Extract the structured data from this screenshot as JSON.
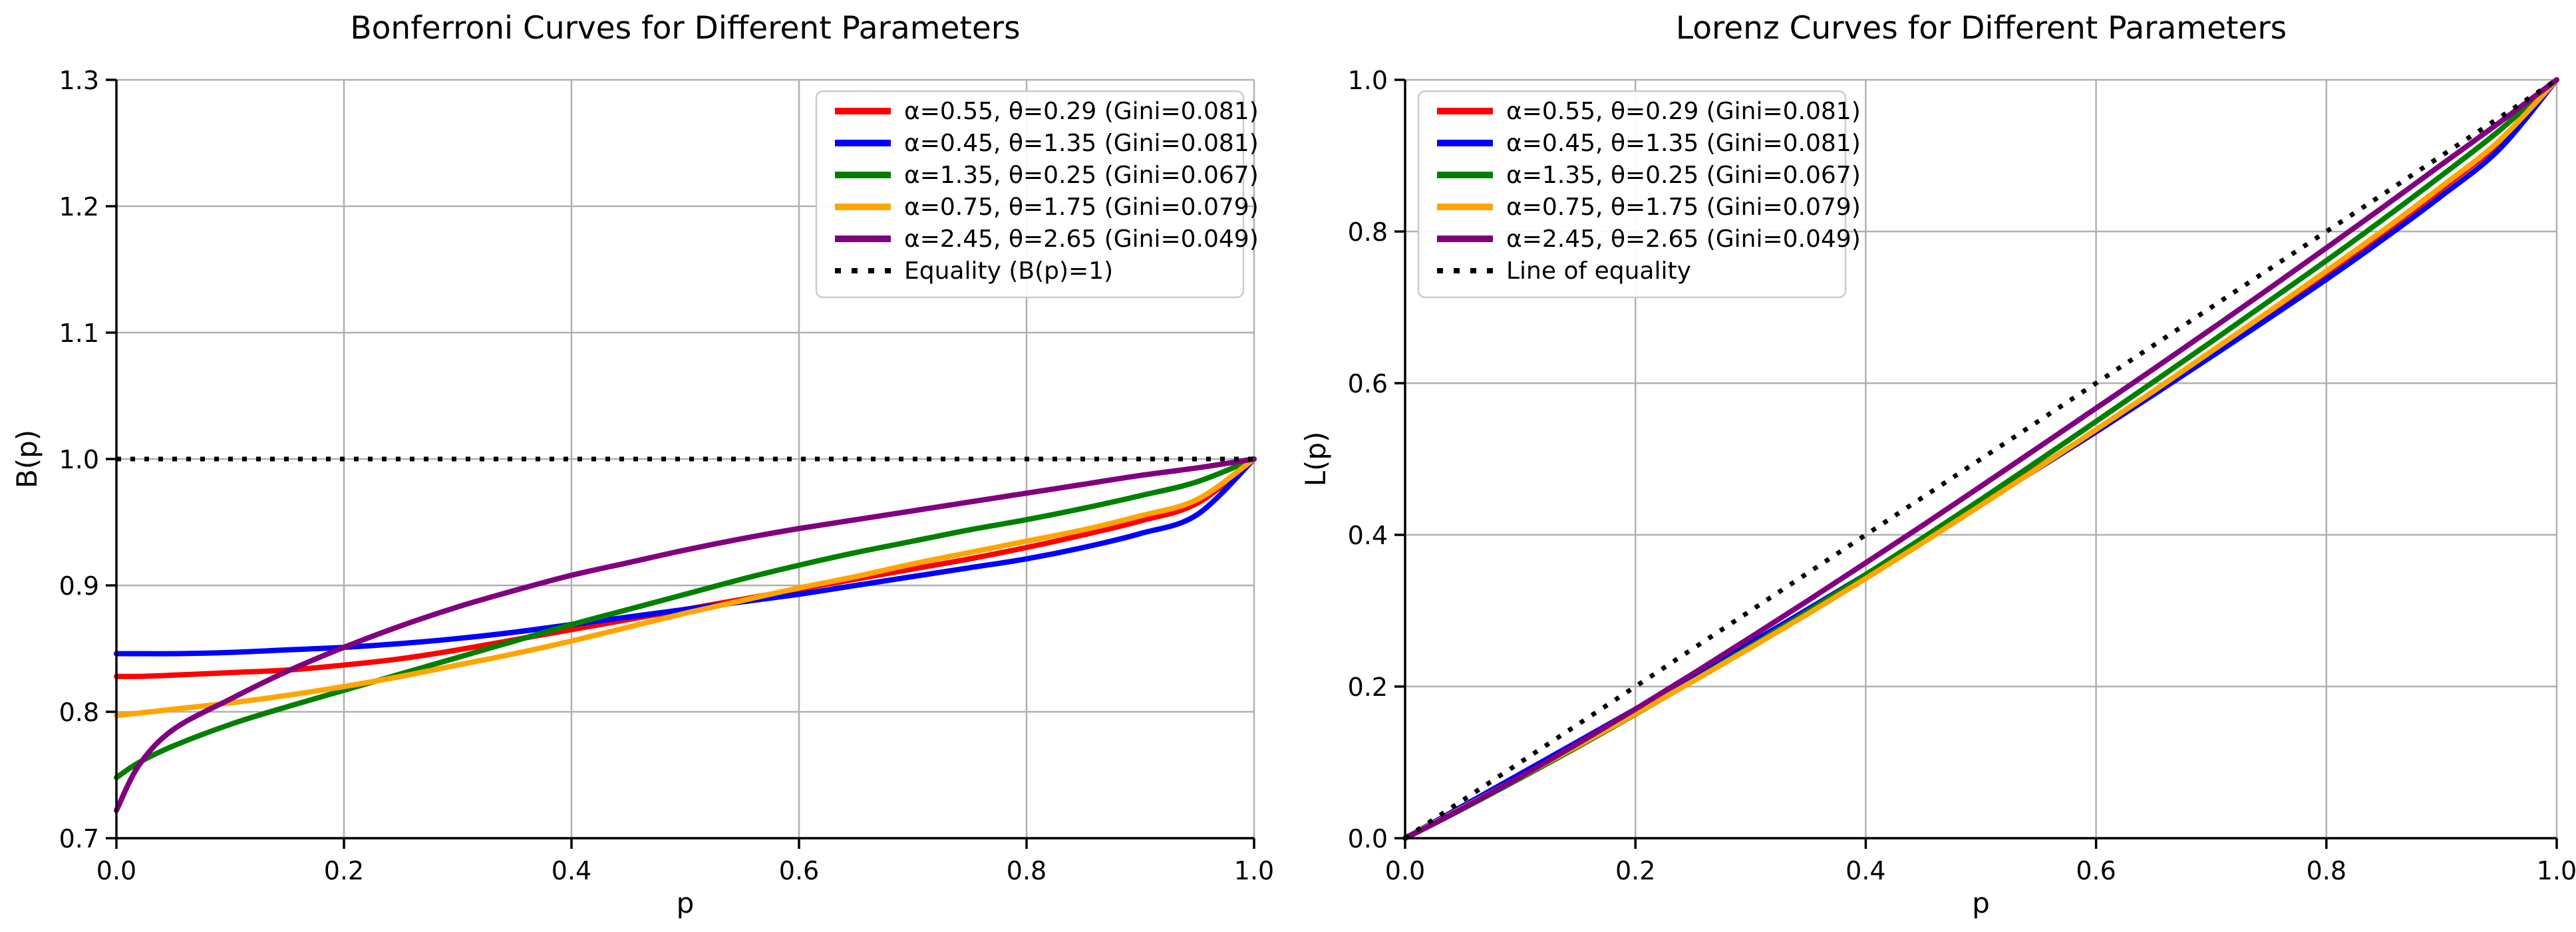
{
  "figure": {
    "background": "#ffffff"
  },
  "colors": {
    "grid": "#b0b0b0",
    "spine": "#000000",
    "legend_border": "#cccccc",
    "legend_fill": "#ffffff"
  },
  "chart_data": [
    {
      "type": "line",
      "title": "Bonferroni Curves for Different Parameters",
      "xlabel": "p",
      "ylabel": "B(p)",
      "xlim": [
        0.0,
        1.0
      ],
      "ylim": [
        0.7,
        1.3
      ],
      "xticks": [
        0.0,
        0.2,
        0.4,
        0.6,
        0.8,
        1.0
      ],
      "xtick_labels": [
        "0.0",
        "0.2",
        "0.4",
        "0.6",
        "0.8",
        "1.0"
      ],
      "yticks": [
        0.7,
        0.8,
        0.9,
        1.0,
        1.1,
        1.2,
        1.3
      ],
      "ytick_labels": [
        "0.7",
        "0.8",
        "0.9",
        "1.0",
        "1.1",
        "1.2",
        "1.3"
      ],
      "grid": true,
      "legend_position": "upper right",
      "x": [
        0,
        0.02,
        0.05,
        0.1,
        0.15,
        0.2,
        0.25,
        0.3,
        0.35,
        0.4,
        0.45,
        0.5,
        0.55,
        0.6,
        0.65,
        0.7,
        0.75,
        0.8,
        0.85,
        0.9,
        0.95,
        1
      ],
      "series": [
        {
          "name": "red",
          "label": "α=0.55, θ=0.29 (Gini=0.081)",
          "color": "#ff0000",
          "style": "solid",
          "y": [
            0.828,
            0.828,
            0.829,
            0.831,
            0.833,
            0.837,
            0.842,
            0.849,
            0.857,
            0.865,
            0.873,
            0.881,
            0.889,
            0.897,
            0.905,
            0.913,
            0.921,
            0.93,
            0.94,
            0.951,
            0.965,
            1
          ]
        },
        {
          "name": "blue",
          "label": "α=0.45, θ=1.35 (Gini=0.081)",
          "color": "#0000ff",
          "style": "solid",
          "y": [
            0.846,
            0.846,
            0.846,
            0.847,
            0.849,
            0.851,
            0.854,
            0.858,
            0.863,
            0.869,
            0.875,
            0.881,
            0.887,
            0.893,
            0.9,
            0.907,
            0.914,
            0.921,
            0.93,
            0.941,
            0.956,
            1
          ]
        },
        {
          "name": "green",
          "label": "α=1.35, θ=0.25 (Gini=0.067)",
          "color": "#008000",
          "style": "solid",
          "y": [
            0.748,
            0.76,
            0.773,
            0.79,
            0.804,
            0.817,
            0.83,
            0.843,
            0.856,
            0.869,
            0.881,
            0.893,
            0.905,
            0.916,
            0.926,
            0.935,
            0.944,
            0.952,
            0.961,
            0.971,
            0.982,
            1
          ]
        },
        {
          "name": "orange",
          "label": "α=0.75, θ=1.75 (Gini=0.079)",
          "color": "#ffa500",
          "style": "solid",
          "y": [
            0.797,
            0.799,
            0.802,
            0.807,
            0.813,
            0.82,
            0.828,
            0.837,
            0.846,
            0.856,
            0.867,
            0.878,
            0.888,
            0.898,
            0.907,
            0.917,
            0.926,
            0.935,
            0.944,
            0.955,
            0.968,
            1
          ]
        },
        {
          "name": "purple",
          "label": "α=2.45, θ=2.65 (Gini=0.049)",
          "color": "#800080",
          "style": "solid",
          "y": [
            0.722,
            0.758,
            0.786,
            0.81,
            0.832,
            0.851,
            0.868,
            0.883,
            0.896,
            0.908,
            0.918,
            0.928,
            0.937,
            0.945,
            0.952,
            0.959,
            0.966,
            0.973,
            0.98,
            0.987,
            0.993,
            1
          ]
        },
        {
          "name": "equality",
          "label": "Equality (B(p)=1)",
          "color": "#000000",
          "style": "dotted",
          "x": [
            0,
            1
          ],
          "y": [
            1,
            1
          ]
        }
      ]
    },
    {
      "type": "line",
      "title": "Lorenz Curves for Different Parameters",
      "xlabel": "p",
      "ylabel": "L(p)",
      "xlim": [
        0.0,
        1.0
      ],
      "ylim": [
        0.0,
        1.0
      ],
      "xticks": [
        0.0,
        0.2,
        0.4,
        0.6,
        0.8,
        1.0
      ],
      "xtick_labels": [
        "0.0",
        "0.2",
        "0.4",
        "0.6",
        "0.8",
        "1.0"
      ],
      "yticks": [
        0.0,
        0.2,
        0.4,
        0.6,
        0.8,
        1.0
      ],
      "ytick_labels": [
        "0.0",
        "0.2",
        "0.4",
        "0.6",
        "0.8",
        "1.0"
      ],
      "grid": true,
      "legend_position": "upper left",
      "x": [
        0,
        0.02,
        0.05,
        0.1,
        0.15,
        0.2,
        0.25,
        0.3,
        0.35,
        0.4,
        0.45,
        0.5,
        0.55,
        0.6,
        0.65,
        0.7,
        0.75,
        0.8,
        0.85,
        0.9,
        0.95,
        1
      ],
      "series": [
        {
          "name": "red",
          "label": "α=0.55, θ=0.29 (Gini=0.081)",
          "color": "#ff0000",
          "style": "solid",
          "y": [
            0,
            0.0166,
            0.0415,
            0.0831,
            0.125,
            0.1674,
            0.2105,
            0.2547,
            0.3,
            0.346,
            0.3929,
            0.4405,
            0.489,
            0.5382,
            0.5883,
            0.6391,
            0.6908,
            0.744,
            0.799,
            0.8559,
            0.9168,
            1
          ]
        },
        {
          "name": "blue",
          "label": "α=0.45, θ=1.35 (Gini=0.081)",
          "color": "#0000ff",
          "style": "solid",
          "y": [
            0,
            0.0169,
            0.0423,
            0.0847,
            0.1274,
            0.1702,
            0.2135,
            0.2574,
            0.3021,
            0.3476,
            0.3938,
            0.4405,
            0.4879,
            0.5358,
            0.585,
            0.6349,
            0.6855,
            0.7368,
            0.7905,
            0.8469,
            0.9082,
            1
          ]
        },
        {
          "name": "green",
          "label": "α=1.35, θ=0.25 (Gini=0.067)",
          "color": "#008000",
          "style": "solid",
          "y": [
            0,
            0.0152,
            0.0387,
            0.079,
            0.1206,
            0.1634,
            0.2075,
            0.2529,
            0.2996,
            0.3476,
            0.3965,
            0.4465,
            0.4978,
            0.5496,
            0.6019,
            0.6545,
            0.708,
            0.7616,
            0.8169,
            0.8739,
            0.9329,
            1
          ]
        },
        {
          "name": "orange",
          "label": "α=0.75, θ=1.75 (Gini=0.079)",
          "color": "#ffa500",
          "style": "solid",
          "y": [
            0,
            0.016,
            0.0401,
            0.0807,
            0.122,
            0.164,
            0.207,
            0.2511,
            0.2961,
            0.3424,
            0.3902,
            0.439,
            0.4884,
            0.5388,
            0.5896,
            0.6419,
            0.6945,
            0.748,
            0.8024,
            0.8595,
            0.9196,
            1
          ]
        },
        {
          "name": "purple",
          "label": "α=2.45, θ=2.65 (Gini=0.049)",
          "color": "#800080",
          "style": "solid",
          "y": [
            0,
            0.0152,
            0.0393,
            0.081,
            0.1248,
            0.1702,
            0.217,
            0.2649,
            0.3136,
            0.3632,
            0.4131,
            0.464,
            0.5154,
            0.567,
            0.6188,
            0.6713,
            0.7245,
            0.7784,
            0.833,
            0.8883,
            0.9434,
            1
          ]
        },
        {
          "name": "equality",
          "label": "Line of equality",
          "color": "#000000",
          "style": "dotted",
          "x": [
            0,
            1
          ],
          "y": [
            0,
            1
          ]
        }
      ]
    }
  ]
}
